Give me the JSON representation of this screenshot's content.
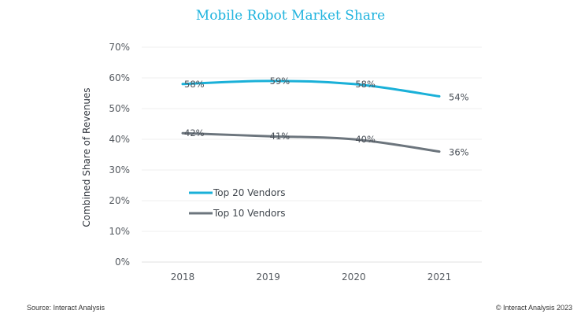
{
  "chart_data": {
    "type": "line",
    "title": "Mobile Robot Market Share",
    "xlabel": "",
    "ylabel": "Combined Share of Revenues",
    "categories": [
      "2018",
      "2019",
      "2020",
      "2021"
    ],
    "ylim": [
      0,
      70
    ],
    "yticks": [
      0,
      10,
      20,
      30,
      40,
      50,
      60,
      70
    ],
    "ytick_labels": [
      "0%",
      "10%",
      "20%",
      "30%",
      "40%",
      "50%",
      "60%",
      "70%"
    ],
    "grid": true,
    "legend_position": "lower-left inside",
    "series": [
      {
        "name": "Top 20 Vendors",
        "color": "#1ab0d8",
        "values": [
          58,
          59,
          58,
          54
        ],
        "labels": [
          "58%",
          "59%",
          "58%",
          "54%"
        ]
      },
      {
        "name": "Top 10 Vendors",
        "color": "#6c757d",
        "values": [
          42,
          41,
          40,
          36
        ],
        "labels": [
          "42%",
          "41%",
          "40%",
          "36%"
        ]
      }
    ]
  },
  "footer": {
    "source": "Source: Interact Analysis",
    "copyright": "© Interact Analysis 2023"
  }
}
